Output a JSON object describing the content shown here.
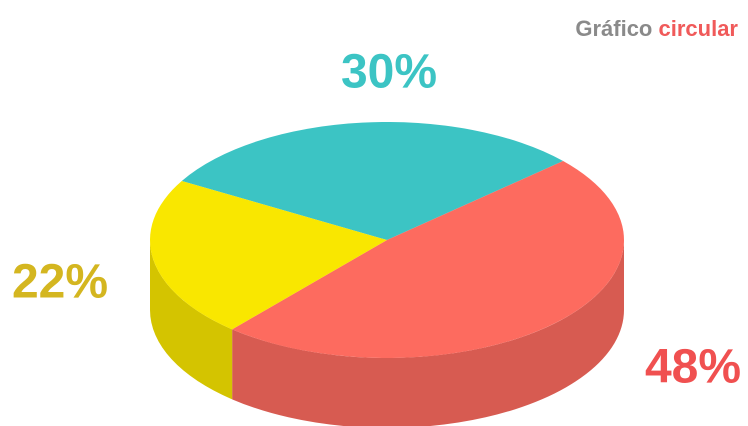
{
  "chart_data": {
    "type": "pie3d",
    "title": [
      "Gráfico",
      "circular"
    ],
    "categories": [
      null,
      null,
      null
    ],
    "values": [
      30,
      48,
      22
    ],
    "value_labels": [
      "30%",
      "48%",
      "22%"
    ],
    "colors": [
      "#3cc4c4",
      "#fd6b5f",
      "#f9e700"
    ]
  }
}
